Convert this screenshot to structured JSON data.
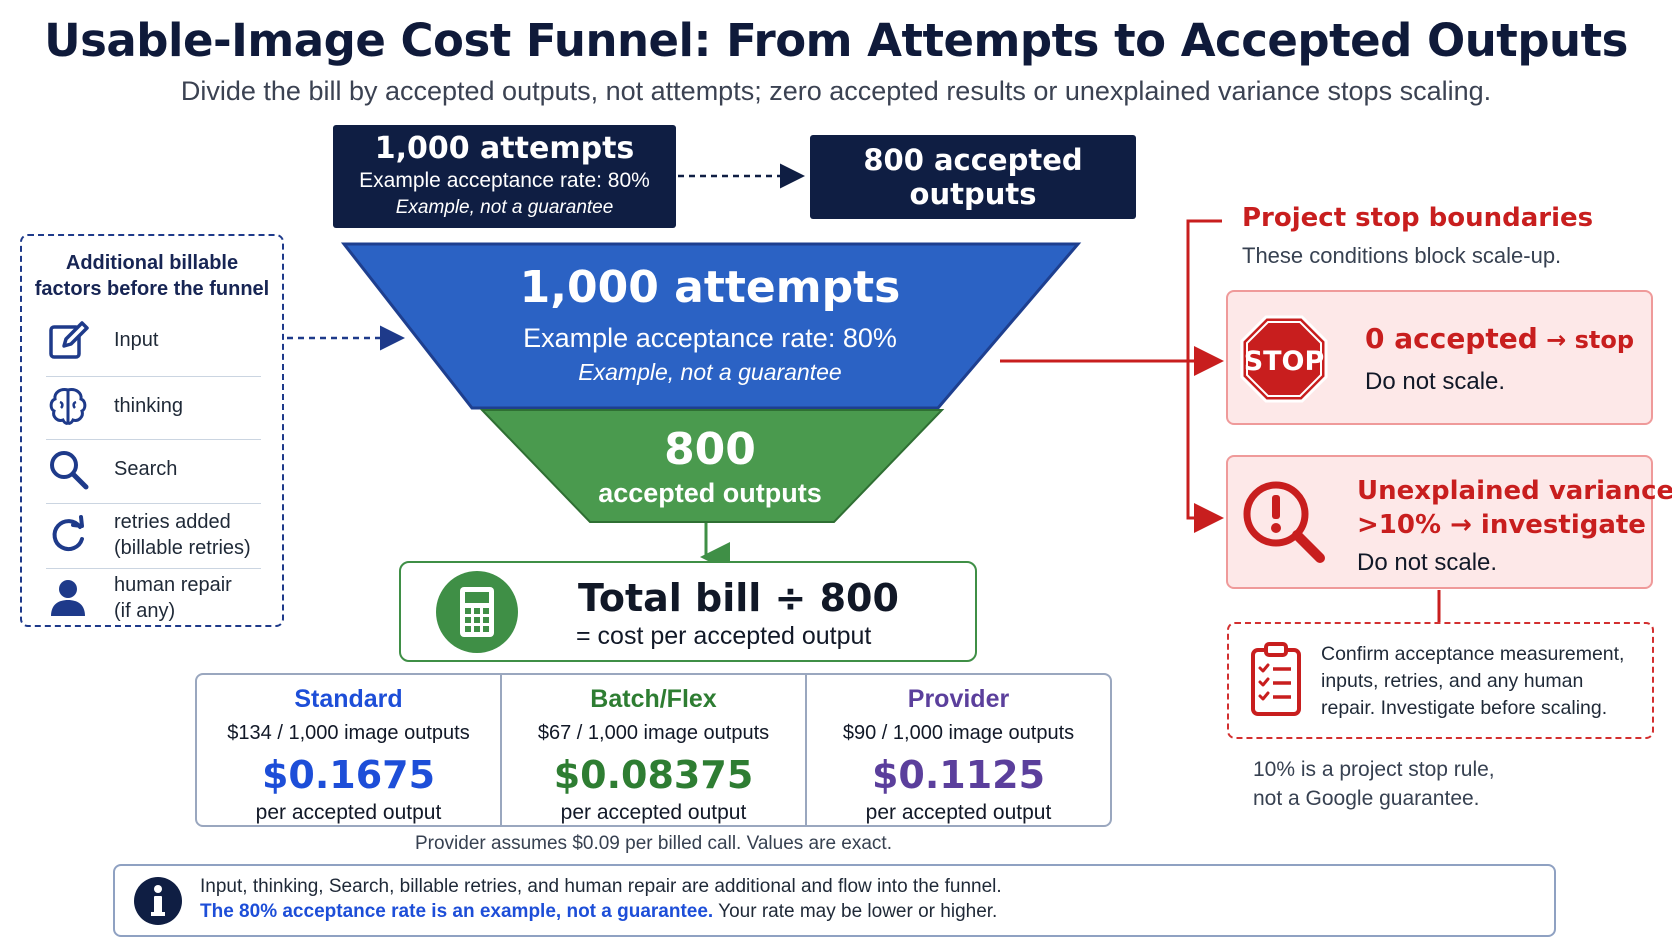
{
  "title": "Usable-Image Cost Funnel: From Attempts to Accepted Outputs",
  "subtitle": "Divide the bill by accepted outputs, not attempts; zero accepted results or unexplained variance stops scaling.",
  "top_flow": {
    "attempts_box": {
      "headline": "1,000 attempts",
      "rate": "Example acceptance rate: 80%",
      "note": "Example, not a guarantee"
    },
    "accepted_box": "800 accepted outputs"
  },
  "funnel": {
    "top": {
      "headline": "1,000 attempts",
      "rate": "Example acceptance rate: 80%",
      "note": "Example, not a guarantee"
    },
    "bottom": {
      "count": "800",
      "label": "accepted outputs"
    }
  },
  "factors": {
    "heading": [
      "Additional billable",
      "factors before the funnel"
    ],
    "items": [
      {
        "icon": "edit-icon",
        "label": "Input",
        "sub": ""
      },
      {
        "icon": "brain-icon",
        "label": "thinking",
        "sub": ""
      },
      {
        "icon": "search-icon",
        "label": "Search",
        "sub": ""
      },
      {
        "icon": "refresh-icon",
        "label": "retries added",
        "sub": "(billable retries)"
      },
      {
        "icon": "person-icon",
        "label": "human repair",
        "sub": "(if any)"
      }
    ]
  },
  "bill": {
    "formula": "Total bill ÷ 800",
    "result": "= cost per accepted output",
    "icon": "calculator-icon"
  },
  "pricing": [
    {
      "name": "Standard",
      "rate": "$134 / 1,000 image outputs",
      "cost": "$0.1675",
      "per": "per accepted output",
      "color": "#1d4ed8"
    },
    {
      "name": "Batch/Flex",
      "rate": "$67 / 1,000 image outputs",
      "cost": "$0.08375",
      "per": "per accepted output",
      "color": "#2e7d32"
    },
    {
      "name": "Provider",
      "rate": "$90 / 1,000 image outputs",
      "cost": "$0.1125",
      "per": "per accepted output",
      "color": "#5b3f9c"
    }
  ],
  "footnote": "Provider assumes $0.09 per billed call. Values are exact.",
  "info": {
    "line1": "Input, thinking, Search, billable retries, and human repair are additional and flow into the funnel.",
    "line2_strong": "The 80% acceptance rate is an example, not a guarantee.",
    "line2_rest": " Your rate may be lower or higher."
  },
  "stop_boundaries": {
    "heading": "Project stop boundaries",
    "subheading": "These conditions block scale-up.",
    "cards": [
      {
        "icon": "stop-sign-icon",
        "stop_sign_text": "STOP",
        "title_main": "0 accepted",
        "title_arrow": " → stop",
        "body": "Do not scale."
      },
      {
        "icon": "alert-magnifier-icon",
        "title_line1": "Unexplained variance",
        "title_line2": ">10% → investigate",
        "body": "Do not scale."
      }
    ],
    "confirm": "Confirm acceptance measurement, inputs, retries, and any human repair. Investigate before scaling.",
    "rule_note": [
      "10% is a project stop rule,",
      "not a Google guarantee."
    ]
  },
  "colors": {
    "navy": "#0f1e43",
    "funnel_blue": "#2b62c4",
    "funnel_green": "#4a9a4e",
    "alert_red": "#c81e1e",
    "card_pink": "#fde8e8"
  }
}
